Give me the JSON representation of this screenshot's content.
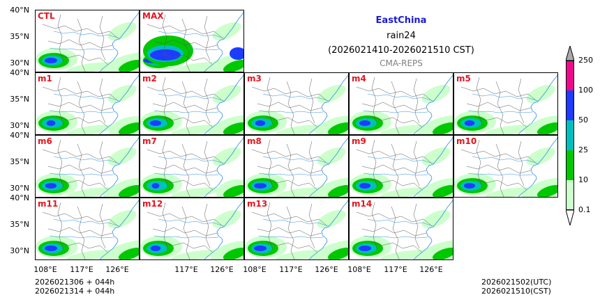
{
  "title": {
    "region": "EastChina",
    "variable": "rain24",
    "period": "(2026021410-2026021510 CST)",
    "source": "CMA-REPS",
    "region_color": "#1a1ad6"
  },
  "panels": {
    "row0": [
      "CTL",
      "MAX"
    ],
    "row1": [
      "m1",
      "m2",
      "m3",
      "m4",
      "m5"
    ],
    "row2": [
      "m6",
      "m7",
      "m8",
      "m9",
      "m10"
    ],
    "row3": [
      "m11",
      "m12",
      "m13",
      "m14"
    ]
  },
  "axes": {
    "y_ticks": [
      "40°N",
      "35°N",
      "30°N"
    ],
    "x_ticks": [
      "108°E",
      "117°E",
      "126°E"
    ]
  },
  "colorbar": {
    "levels": [
      "0.1",
      "10",
      "25",
      "50",
      "100",
      "250"
    ],
    "colors": [
      "#ccffcc",
      "#00c800",
      "#00bfbf",
      "#1e3cff",
      "#ee0a8c",
      "#aaaaaa"
    ]
  },
  "footer": {
    "init_line1": "2026021306  +  044h",
    "init_line2": "2026021314  +  044h",
    "valid_utc": "2026021502(UTC)",
    "valid_cst": "2026021510(CST)"
  }
}
